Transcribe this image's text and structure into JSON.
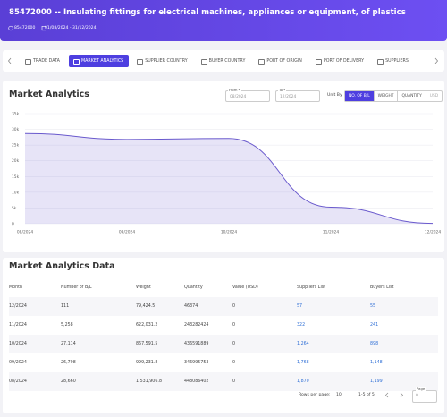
{
  "header": {
    "title": "85472000 -- Insulating fittings for electrical machines, appliances or equipment, of plastics",
    "code": "85472000",
    "date_range": "01/08/2024 - 31/12/2024"
  },
  "tabs": [
    "TRADE DATA",
    "MARKET ANALYTICS",
    "SUPPLIER COUNTRY",
    "BUYER COUNTRY",
    "PORT OF ORIGIN",
    "PORT OF DELIVERY",
    "SUPPLIERS"
  ],
  "filters": {
    "from_label": "From *",
    "from_value": "08/2024",
    "to_label": "To *",
    "to_value": "12/2024",
    "unit_label": "Unit By",
    "units": [
      "NO. OF B/L",
      "WEIGHT",
      "QUANTITY",
      "USD"
    ]
  },
  "chart_data": {
    "type": "line",
    "title": "Market Analytics",
    "categories": [
      "08/2024",
      "09/2024",
      "10/2024",
      "11/2024",
      "12/2024"
    ],
    "series": [
      {
        "name": "NO. OF B/L",
        "color": "#6a5acd",
        "values": [
          28660,
          26798,
          27114,
          5258,
          111
        ]
      }
    ],
    "ylim": [
      0,
      35000
    ],
    "yticks": [
      0,
      {
        "value": 5000,
        "label": "5k"
      },
      {
        "value": 10000,
        "label": "10k"
      },
      {
        "value": 15000,
        "label": "15k"
      },
      {
        "value": 20000,
        "label": "20k"
      },
      {
        "value": 25000,
        "label": "25k"
      },
      {
        "value": 30000,
        "label": "30k"
      },
      {
        "value": 35000,
        "label": "35k"
      }
    ],
    "grid": true
  },
  "table": {
    "title": "Market Analytics Data",
    "columns": [
      "Month",
      "Number of B/L",
      "Weight",
      "Quantity",
      "Value (USD)",
      "Suppliers List",
      "Buyers List"
    ],
    "rows": [
      [
        "12/2024",
        "111",
        "79,424.5",
        "46374",
        "0",
        "57",
        "55"
      ],
      [
        "11/2024",
        "5,258",
        "622,031.2",
        "243282424",
        "0",
        "322",
        "241"
      ],
      [
        "10/2024",
        "27,114",
        "867,591.5",
        "436591889",
        "0",
        "1,264",
        "898"
      ],
      [
        "09/2024",
        "26,798",
        "999,231.8",
        "346995753",
        "0",
        "1,768",
        "1,148"
      ],
      [
        "08/2024",
        "28,660",
        "1,531,906.8",
        "448086402",
        "0",
        "1,870",
        "1,199"
      ]
    ]
  },
  "pagination": {
    "rows_label": "Rows per page:",
    "rows_value": "10",
    "range": "1-5 of 5",
    "page_label": "Page",
    "page_value": "0"
  }
}
